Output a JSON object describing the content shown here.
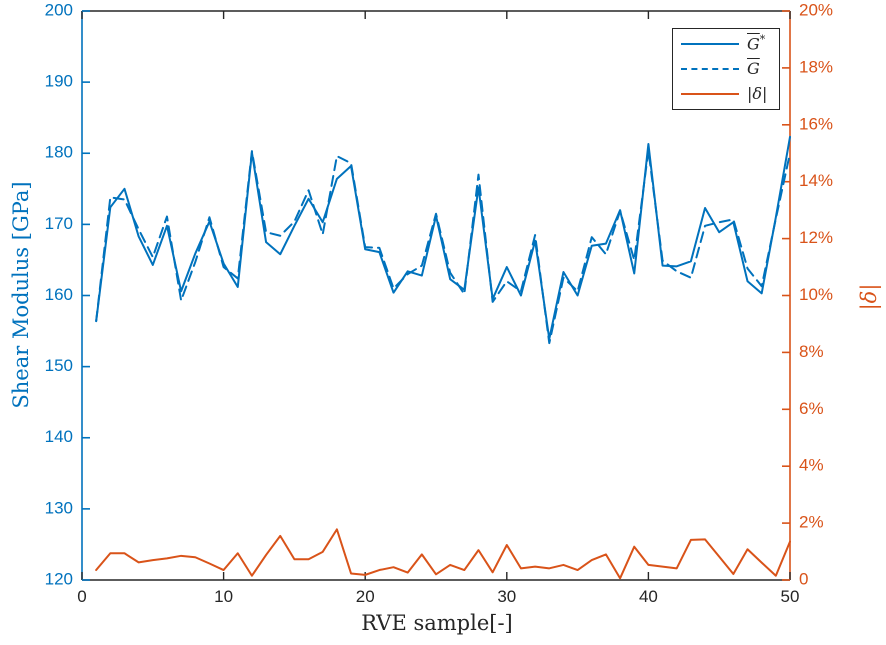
{
  "colors": {
    "blue": "#0072BD",
    "orange": "#D95319",
    "axis": "#262626",
    "background": "#ffffff"
  },
  "axes": {
    "x": {
      "title": "RVE sample[-]",
      "tick_labels": [
        "0",
        "10",
        "20",
        "30",
        "40",
        "50"
      ],
      "tick_values": [
        0,
        10,
        20,
        30,
        40,
        50
      ]
    },
    "left": {
      "title": "Shear Modulus [GPa]",
      "color": "#0072BD",
      "tick_labels": [
        "120",
        "130",
        "140",
        "150",
        "160",
        "170",
        "180",
        "190",
        "200"
      ],
      "tick_values": [
        120,
        130,
        140,
        150,
        160,
        170,
        180,
        190,
        200
      ]
    },
    "right": {
      "title": "|δ|",
      "color": "#D95319",
      "tick_labels": [
        "0",
        "2%",
        "4%",
        "6%",
        "8%",
        "10%",
        "12%",
        "14%",
        "16%",
        "18%",
        "20%"
      ],
      "tick_values": [
        0,
        2,
        4,
        6,
        8,
        10,
        12,
        14,
        16,
        18,
        20
      ]
    }
  },
  "legend": {
    "entries": [
      {
        "text": "G",
        "overline": true,
        "sup": "*",
        "style": "solid",
        "color": "#0072BD"
      },
      {
        "text": "G",
        "overline": true,
        "sup": "",
        "style": "dashed",
        "color": "#0072BD"
      },
      {
        "text": "|δ|",
        "overline": false,
        "sup": "",
        "style": "solid",
        "color": "#D95319"
      }
    ]
  },
  "chart_data": {
    "type": "line",
    "title": "",
    "xlabel": "RVE sample[-]",
    "ylabel_left": "Shear Modulus [GPa]",
    "ylabel_right": "|δ|",
    "xlim": [
      0,
      50
    ],
    "ylim_left": [
      120,
      200
    ],
    "ylim_right_percent": [
      0,
      20
    ],
    "grid": false,
    "legend_position": "top-right",
    "x": [
      1,
      2,
      3,
      4,
      5,
      6,
      7,
      8,
      9,
      10,
      11,
      12,
      13,
      14,
      15,
      16,
      17,
      18,
      19,
      20,
      21,
      22,
      23,
      24,
      25,
      26,
      27,
      28,
      29,
      30,
      31,
      32,
      33,
      34,
      35,
      36,
      37,
      38,
      39,
      40,
      41,
      42,
      43,
      44,
      45,
      46,
      47,
      48,
      49,
      50
    ],
    "series": [
      {
        "name": "G̅*",
        "axis": "left",
        "units": "GPa",
        "color": "#0072BD",
        "line_style": "solid",
        "values": [
          156.4,
          172.4,
          175.0,
          168.3,
          164.3,
          169.8,
          160.6,
          165.9,
          170.4,
          164.5,
          161.2,
          180.1,
          167.5,
          165.8,
          169.8,
          173.6,
          170.3,
          176.4,
          178.2,
          166.5,
          166.1,
          160.4,
          163.4,
          162.8,
          171.2,
          162.3,
          160.8,
          175.2,
          159.5,
          164.0,
          160.0,
          167.7,
          153.9,
          163.3,
          160.0,
          167.0,
          167.3,
          172.0,
          163.1,
          181.3,
          164.2,
          164.1,
          164.8,
          172.3,
          168.9,
          170.3,
          162.0,
          160.3,
          171.0,
          182.3
        ]
      },
      {
        "name": "G̅",
        "axis": "left",
        "units": "GPa",
        "color": "#0072BD",
        "line_style": "dashed",
        "values": [
          156.4,
          173.8,
          173.5,
          169.3,
          165.4,
          171.1,
          159.3,
          164.7,
          171.0,
          164.0,
          162.4,
          180.3,
          168.9,
          168.4,
          170.4,
          174.8,
          168.6,
          179.6,
          178.6,
          166.8,
          166.7,
          161.0,
          163.0,
          164.2,
          171.5,
          163.2,
          160.2,
          177.0,
          159.1,
          162.0,
          160.6,
          168.5,
          153.3,
          162.5,
          160.6,
          168.2,
          165.8,
          171.9,
          165.0,
          180.4,
          164.9,
          163.4,
          162.5,
          169.8,
          170.3,
          170.7,
          163.8,
          161.3,
          170.8,
          180.0
        ]
      },
      {
        "name": "|δ|",
        "axis": "right",
        "units": "%",
        "color": "#D95319",
        "line_style": "solid",
        "values": [
          0.35,
          0.94,
          0.94,
          0.62,
          0.7,
          0.76,
          0.85,
          0.8,
          0.58,
          0.35,
          0.94,
          0.15,
          0.88,
          1.55,
          0.73,
          0.73,
          0.99,
          1.78,
          0.23,
          0.18,
          0.35,
          0.45,
          0.26,
          0.9,
          0.2,
          0.53,
          0.35,
          1.05,
          0.27,
          1.23,
          0.41,
          0.47,
          0.41,
          0.53,
          0.35,
          0.7,
          0.9,
          0.06,
          1.17,
          0.53,
          0.47,
          0.41,
          1.41,
          1.43,
          0.82,
          0.21,
          1.08,
          0.61,
          0.15,
          1.35
        ]
      }
    ]
  }
}
